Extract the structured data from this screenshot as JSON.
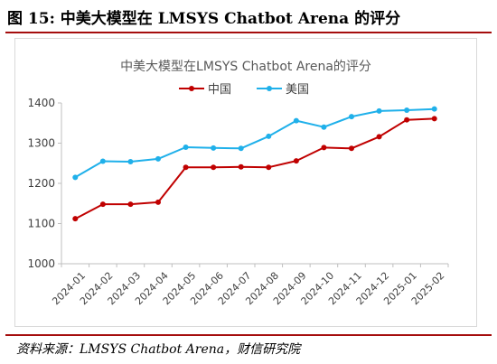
{
  "figure_title": "图 15:  中美大模型在 LMSYS Chatbot Arena 的评分",
  "source": "资料来源：LMSYS Chatbot Arena，财信研究院",
  "chart_data": {
    "type": "line",
    "title": "中美大模型在LMSYS Chatbot Arena的评分",
    "categories": [
      "2024-01",
      "2024-02",
      "2024-03",
      "2024-04",
      "2024-05",
      "2024-06",
      "2024-07",
      "2024-08",
      "2024-09",
      "2024-10",
      "2024-11",
      "2024-12",
      "2025-01",
      "2025-02"
    ],
    "ylim": [
      1000,
      1400
    ],
    "yticks": [
      1000,
      1100,
      1200,
      1300,
      1400
    ],
    "grid": false,
    "legend_position": "top-center",
    "series": [
      {
        "name": "中国",
        "color": "#c00000",
        "values": [
          1112,
          1148,
          1148,
          1153,
          1240,
          1240,
          1241,
          1240,
          1256,
          1289,
          1287,
          1316,
          1358,
          1361
        ]
      },
      {
        "name": "美国",
        "color": "#1fb0ea",
        "values": [
          1215,
          1255,
          1254,
          1261,
          1290,
          1288,
          1287,
          1317,
          1356,
          1340,
          1366,
          1380,
          1382,
          1385
        ]
      }
    ]
  }
}
